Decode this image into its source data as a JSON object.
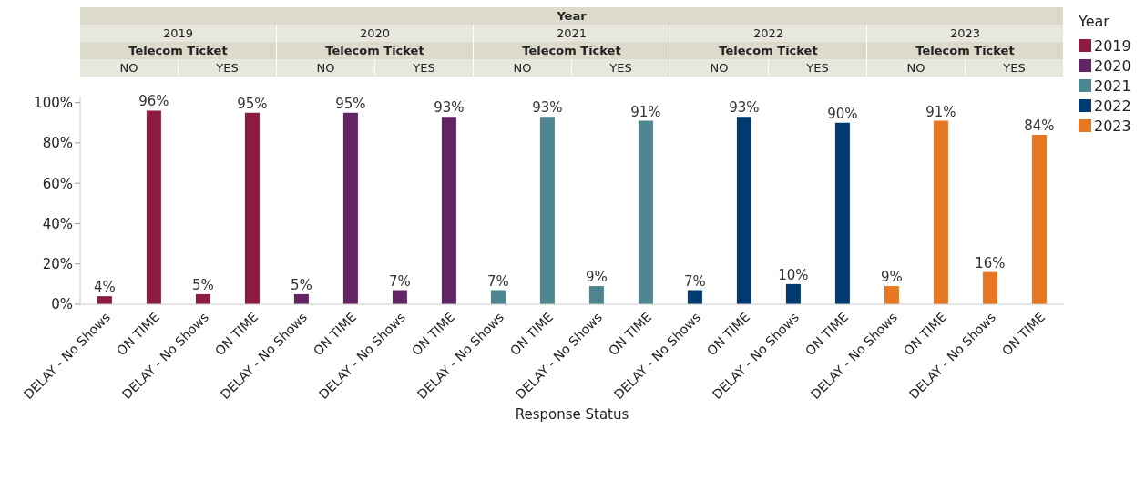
{
  "chart_data": {
    "type": "bar",
    "xlabel": "Response Status",
    "legend_title": "Year",
    "legend": "right",
    "categories": [
      "DELAY - No Shows",
      "ON TIME",
      "DELAY - No Shows",
      "ON TIME",
      "DELAY - No Shows",
      "ON TIME",
      "DELAY - No Shows",
      "ON TIME",
      "DELAY - No Shows",
      "ON TIME",
      "DELAY - No Shows",
      "ON TIME",
      "DELAY - No Shows",
      "ON TIME",
      "DELAY - No Shows",
      "ON TIME",
      "DELAY - No Shows",
      "ON TIME",
      "DELAY - No Shows",
      "ON TIME"
    ],
    "series": [
      {
        "name": "2019",
        "color": "#8b1c3f",
        "values": [
          4,
          96,
          5,
          95,
          null,
          null,
          null,
          null,
          null,
          null,
          null,
          null,
          null,
          null,
          null,
          null,
          null,
          null,
          null,
          null
        ],
        "value_labels": [
          "4%",
          "96%",
          "5%",
          "95%",
          null,
          null,
          null,
          null,
          null,
          null,
          null,
          null,
          null,
          null,
          null,
          null,
          null,
          null,
          null,
          null
        ]
      },
      {
        "name": "2020",
        "color": "#632466",
        "values": [
          null,
          null,
          null,
          null,
          5,
          95,
          7,
          93,
          null,
          null,
          null,
          null,
          null,
          null,
          null,
          null,
          null,
          null,
          null,
          null
        ],
        "value_labels": [
          null,
          null,
          null,
          null,
          "5%",
          "95%",
          "7%",
          "93%",
          null,
          null,
          null,
          null,
          null,
          null,
          null,
          null,
          null,
          null,
          null,
          null
        ]
      },
      {
        "name": "2021",
        "color": "#4e8690",
        "values": [
          null,
          null,
          null,
          null,
          null,
          null,
          null,
          null,
          7,
          93,
          9,
          91,
          null,
          null,
          null,
          null,
          null,
          null,
          null,
          null
        ],
        "value_labels": [
          null,
          null,
          null,
          null,
          null,
          null,
          null,
          null,
          "7%",
          "93%",
          "9%",
          "91%",
          null,
          null,
          null,
          null,
          null,
          null,
          null,
          null
        ]
      },
      {
        "name": "2022",
        "color": "#003a70",
        "values": [
          null,
          null,
          null,
          null,
          null,
          null,
          null,
          null,
          null,
          null,
          null,
          null,
          7,
          93,
          10,
          90,
          null,
          null,
          null,
          null
        ],
        "value_labels": [
          null,
          null,
          null,
          null,
          null,
          null,
          null,
          null,
          null,
          null,
          null,
          null,
          "7%",
          "93%",
          "10%",
          "90%",
          null,
          null,
          null,
          null
        ]
      },
      {
        "name": "2023",
        "color": "#e87722",
        "values": [
          null,
          null,
          null,
          null,
          null,
          null,
          null,
          null,
          null,
          null,
          null,
          null,
          null,
          null,
          null,
          null,
          9,
          91,
          16,
          84
        ],
        "value_labels": [
          null,
          null,
          null,
          null,
          null,
          null,
          null,
          null,
          null,
          null,
          null,
          null,
          null,
          null,
          null,
          null,
          "9%",
          "91%",
          "16%",
          "84%"
        ]
      }
    ],
    "ylim": [
      0,
      103
    ],
    "yticks": [
      {
        "value": 0,
        "label": "0%"
      },
      {
        "value": 20,
        "label": "20%"
      },
      {
        "value": 40,
        "label": "40%"
      },
      {
        "value": 60,
        "label": "60%"
      },
      {
        "value": 80,
        "label": "80%"
      },
      {
        "value": 100,
        "label": "100%"
      }
    ],
    "grid": false,
    "annotations": [
      "Year",
      "2019",
      "Telecom Ticket",
      "NO",
      "YES",
      "2020",
      "Telecom Ticket",
      "NO",
      "YES",
      "2021",
      "Telecom Ticket",
      "NO",
      "YES",
      "2022",
      "Telecom Ticket",
      "NO",
      "YES",
      "2023",
      "Telecom Ticket",
      "NO",
      "YES"
    ]
  }
}
